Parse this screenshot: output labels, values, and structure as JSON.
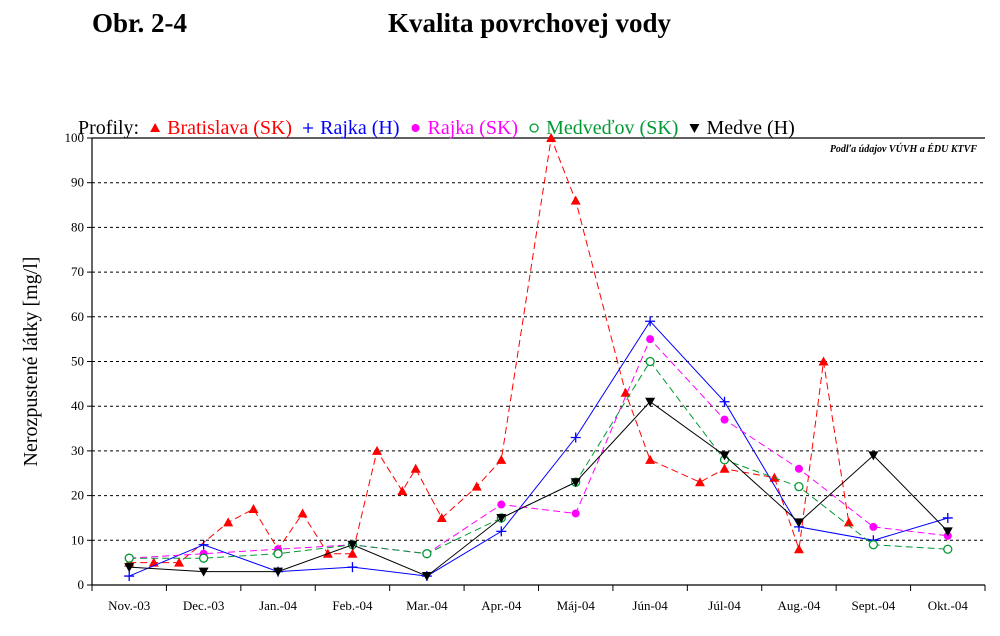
{
  "header": {
    "figure_label": "Obr. 2-4",
    "title": "Kvalita povrchovej vody"
  },
  "chart_data": {
    "type": "line",
    "legend_prefix": "Profily:",
    "legend_placement": "top",
    "source_note": "Podľa údajov VÚVH a ÉDU KTVF",
    "ylabel": "Nerozpustené látky [mg/l]",
    "xlabel": "",
    "ylim": [
      0,
      100
    ],
    "yticks": [
      0,
      10,
      20,
      30,
      40,
      50,
      60,
      70,
      80,
      90,
      100
    ],
    "grid": "horizontal dashed",
    "categories": [
      "Nov.-03",
      "Dec.-03",
      "Jan.-04",
      "Feb.-04",
      "Mar.-04",
      "Apr.-04",
      "Máj-04",
      "Jún-04",
      "Júl-04",
      "Aug.-04",
      "Sept.-04",
      "Okt.-04"
    ],
    "series": [
      {
        "name": "Bratislava (SK)",
        "color": "#ff0000",
        "marker": "triangle-up",
        "line": "dashed",
        "points": [
          [
            0,
            5
          ],
          [
            0.33,
            5
          ],
          [
            0.67,
            5
          ],
          [
            1.33,
            14
          ],
          [
            1.67,
            17
          ],
          [
            2,
            8
          ],
          [
            2.33,
            16
          ],
          [
            2.67,
            7
          ],
          [
            3,
            7
          ],
          [
            3.33,
            30
          ],
          [
            3.67,
            21
          ],
          [
            3.85,
            26
          ],
          [
            4.2,
            15
          ],
          [
            4.67,
            22
          ],
          [
            5,
            28
          ],
          [
            5.67,
            100
          ],
          [
            6,
            86
          ],
          [
            6.67,
            43
          ],
          [
            7,
            28
          ],
          [
            7.67,
            23
          ],
          [
            8,
            26
          ],
          [
            8.67,
            24
          ],
          [
            9,
            8
          ],
          [
            9.33,
            50
          ],
          [
            9.67,
            14
          ]
        ]
      },
      {
        "name": "Rajka (H)",
        "color": "#0000ff",
        "marker": "plus",
        "line": "solid",
        "points": [
          [
            0,
            2
          ],
          [
            1,
            9
          ],
          [
            2,
            3
          ],
          [
            3,
            4
          ],
          [
            4,
            2
          ],
          [
            5,
            12
          ],
          [
            6,
            33
          ],
          [
            7,
            59
          ],
          [
            8,
            41
          ],
          [
            9,
            13
          ],
          [
            10,
            10
          ],
          [
            11,
            15
          ]
        ]
      },
      {
        "name": "Rajka (SK)",
        "color": "#ff00ff",
        "marker": "filled-circle",
        "line": "dashed",
        "points": [
          [
            0,
            6
          ],
          [
            1,
            7
          ],
          [
            2,
            8
          ],
          [
            3,
            9
          ],
          [
            4,
            7
          ],
          [
            5,
            18
          ],
          [
            6,
            16
          ],
          [
            7,
            55
          ],
          [
            8,
            37
          ],
          [
            9,
            26
          ],
          [
            10,
            13
          ],
          [
            11,
            11
          ]
        ]
      },
      {
        "name": "Medveďov (SK)",
        "color": "#009933",
        "marker": "open-circle",
        "line": "dashed",
        "points": [
          [
            0,
            6
          ],
          [
            1,
            6
          ],
          [
            2,
            7
          ],
          [
            3,
            9
          ],
          [
            4,
            7
          ],
          [
            5,
            15
          ],
          [
            6,
            23
          ],
          [
            7,
            50
          ],
          [
            8,
            28
          ],
          [
            9,
            22
          ],
          [
            10,
            9
          ],
          [
            11,
            8
          ]
        ]
      },
      {
        "name": "Medve (H)",
        "color": "#000000",
        "marker": "triangle-down",
        "line": "solid",
        "points": [
          [
            0,
            4
          ],
          [
            1,
            3
          ],
          [
            2,
            3
          ],
          [
            3,
            9
          ],
          [
            4,
            2
          ],
          [
            5,
            15
          ],
          [
            6,
            23
          ],
          [
            7,
            41
          ],
          [
            8,
            29
          ],
          [
            9,
            14
          ],
          [
            10,
            29
          ],
          [
            11,
            12
          ]
        ]
      }
    ]
  }
}
